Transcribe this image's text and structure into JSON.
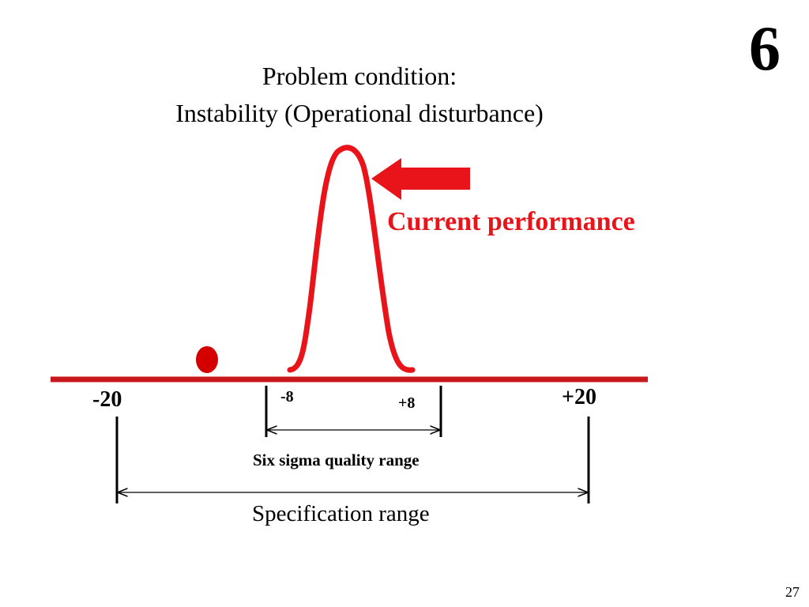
{
  "slide": {
    "title_line1": "Problem condition:",
    "title_line2": "Instability (Operational disturbance)",
    "corner_number": "6",
    "page_number": "27"
  },
  "diagram": {
    "curve_label": "Current performance",
    "ticks": {
      "spec_lower": "-20",
      "spec_upper": "+20",
      "sigma_lower": "-8",
      "sigma_upper": "+8"
    },
    "six_sigma_range_label": "Six sigma quality range",
    "specification_range_label": "Specification range",
    "colors": {
      "curve": "#e8141a",
      "axis": "#c8181c",
      "dot": "#d40000",
      "text": "#000000"
    }
  }
}
